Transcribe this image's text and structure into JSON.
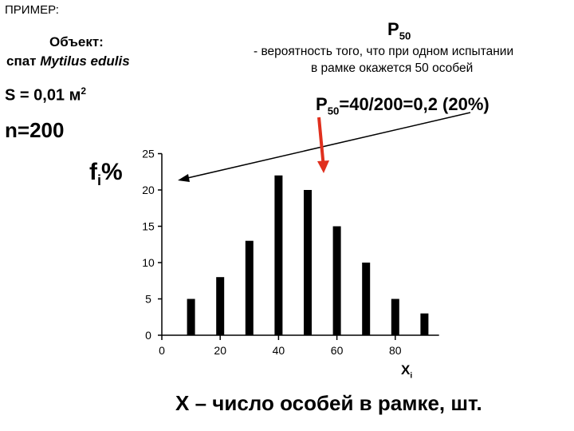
{
  "header": {
    "example_label": "ПРИМЕР:",
    "object_label": "Объект:",
    "species_prefix": "спат",
    "species_name": "Mytilus edulis",
    "area_main": "S = 0,01 м",
    "area_sup": "2",
    "n_label": "n=200"
  },
  "annotation": {
    "p_main": "Р",
    "p_sub": "50",
    "desc_line1": "- вероятность того, что  при одном испытании",
    "desc_line2": "в рамке окажется 50 особей",
    "calc_prefix": "Р",
    "calc_sub": "50",
    "calc_rest": "=40/200=0,2 (20%)"
  },
  "colors": {
    "bar": "#000000",
    "axis": "#000000",
    "arrow_red": "#e0301e",
    "pointer": "#000000"
  },
  "chart_data": {
    "type": "bar",
    "x": [
      10,
      20,
      30,
      40,
      50,
      60,
      70,
      80,
      90
    ],
    "values": [
      5,
      8,
      13,
      22,
      20,
      15,
      10,
      5,
      3
    ],
    "xticks": [
      "0",
      "20",
      "40",
      "60",
      "80"
    ],
    "yticks": [
      "0",
      "5",
      "10",
      "15",
      "20",
      "25"
    ],
    "xlim": [
      0,
      95
    ],
    "ylim": [
      0,
      25
    ],
    "ylabel_main": "f",
    "ylabel_sub": "i",
    "ylabel_suffix": "%",
    "xlabel_main": "X",
    "xlabel_sub": "i",
    "xaxis_title": "X – число особей в рамке, шт.",
    "grid": false
  }
}
